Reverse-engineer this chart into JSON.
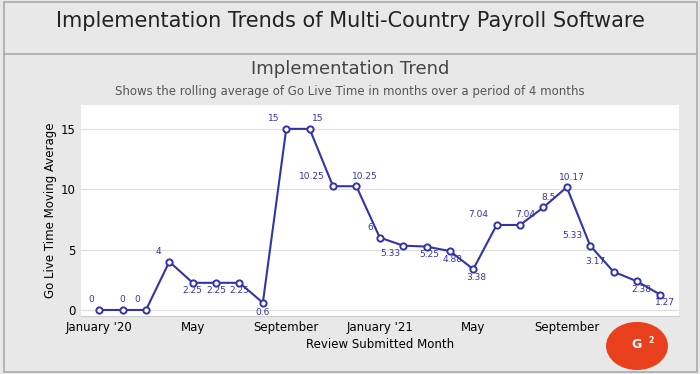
{
  "title_outer": "Implementation Trends of Multi-Country Payroll Software",
  "title_inner": "Implementation Trend",
  "subtitle": "Shows the rolling average of Go Live Time in months over a period of 4 months",
  "xlabel": "Review Submitted Month",
  "ylabel": "Go Live Time Moving Average",
  "x_values": [
    0,
    1,
    2,
    3,
    4,
    5,
    6,
    7,
    8,
    9,
    10,
    11,
    12,
    13,
    14,
    15,
    16,
    17,
    18,
    19,
    20,
    21,
    22,
    23,
    24
  ],
  "y_values": [
    0,
    0,
    0,
    4,
    2.25,
    2.25,
    2.25,
    0.6,
    15,
    15,
    10.25,
    10.25,
    6,
    5.33,
    5.25,
    4.88,
    3.38,
    7.04,
    7.04,
    8.5,
    10.17,
    5.33,
    3.17,
    2.38,
    1.27
  ],
  "labels": [
    "0",
    "0",
    "0",
    "4",
    "2.25",
    "2.25",
    "2.25",
    "0.6",
    "15",
    "15",
    "10.25",
    "10.25",
    "6",
    "5.33",
    "5.25",
    "4.88",
    "3.38",
    "7.04",
    "7.04",
    "8.5",
    "10.17",
    "5.33",
    "3.17",
    "2.38",
    "1.27"
  ],
  "xtick_positions": [
    0,
    4,
    8,
    12,
    16,
    20,
    24
  ],
  "xtick_labels": [
    "January '20",
    "May",
    "September",
    "January '21",
    "May",
    "September",
    ""
  ],
  "ylim": [
    -0.5,
    17
  ],
  "yticks": [
    0,
    5,
    10,
    15
  ],
  "line_color": "#3333aa",
  "marker_color": "#ffffff",
  "marker_edge_color": "#3333aa",
  "label_color": "#3333aa",
  "bg_outer": "#e8e8e8",
  "bg_inner": "#ffffff",
  "title_outer_fontsize": 15,
  "title_inner_fontsize": 13,
  "subtitle_fontsize": 8.5,
  "label_fontsize": 6.5,
  "axis_label_fontsize": 8.5,
  "tick_label_fontsize": 8.5
}
